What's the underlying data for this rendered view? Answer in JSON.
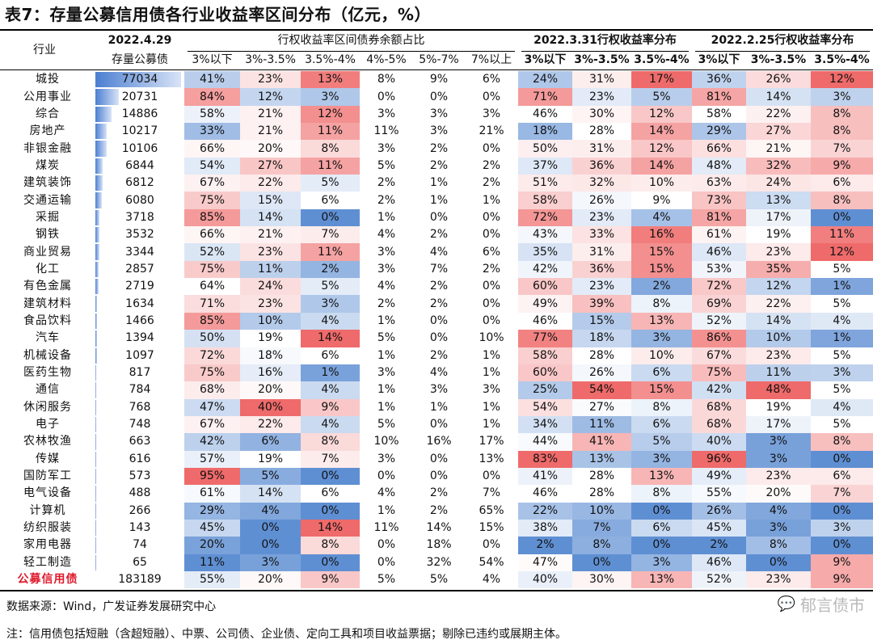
{
  "title": "表7：存量公募信用债各行业收益率区间分布（亿元，%）",
  "headers": {
    "industry": "行业",
    "stock_date": "2022.4.29",
    "stock": "存量公募债",
    "group_share": "行权收益率区间债券余额占比",
    "group_0331": "2022.3.31行权收益率分布",
    "group_0225": "2022.2.25行权收益率分布",
    "share_cols": [
      "3%以下",
      "3%-3.5%",
      "3.5%-4%",
      "4%-5%",
      "5%-7%",
      "7%以上"
    ],
    "dist_0331_cols": [
      "3%以下",
      "3%-3.5%",
      "3.5%-4%"
    ],
    "dist_0225_cols": [
      "3%以下",
      "3%-3.5%",
      "3.5%-4%"
    ]
  },
  "colors": {
    "high": "#ef6a6a",
    "low": "#5f8fd3",
    "mid": "#ffffff",
    "total_label": "#e0192b"
  },
  "rows": [
    {
      "industry": "城投",
      "stock": "77034",
      "share": [
        "41%",
        "23%",
        "13%",
        "8%",
        "9%",
        "6%"
      ],
      "d0331": [
        "24%",
        "31%",
        "17%"
      ],
      "d0225": [
        "36%",
        "26%",
        "12%"
      ]
    },
    {
      "industry": "公用事业",
      "stock": "20731",
      "share": [
        "84%",
        "12%",
        "3%",
        "0%",
        "0%",
        "0%"
      ],
      "d0331": [
        "71%",
        "23%",
        "5%"
      ],
      "d0225": [
        "81%",
        "14%",
        "3%"
      ]
    },
    {
      "industry": "综合",
      "stock": "14886",
      "share": [
        "58%",
        "21%",
        "12%",
        "3%",
        "3%",
        "3%"
      ],
      "d0331": [
        "46%",
        "30%",
        "12%"
      ],
      "d0225": [
        "58%",
        "22%",
        "8%"
      ]
    },
    {
      "industry": "房地产",
      "stock": "10217",
      "share": [
        "33%",
        "21%",
        "11%",
        "11%",
        "3%",
        "21%"
      ],
      "d0331": [
        "18%",
        "28%",
        "14%"
      ],
      "d0225": [
        "29%",
        "27%",
        "8%"
      ]
    },
    {
      "industry": "非银金融",
      "stock": "10106",
      "share": [
        "66%",
        "20%",
        "8%",
        "3%",
        "2%",
        "0%"
      ],
      "d0331": [
        "50%",
        "31%",
        "12%"
      ],
      "d0225": [
        "66%",
        "21%",
        "7%"
      ]
    },
    {
      "industry": "煤炭",
      "stock": "6844",
      "share": [
        "54%",
        "27%",
        "11%",
        "5%",
        "2%",
        "2%"
      ],
      "d0331": [
        "37%",
        "36%",
        "14%"
      ],
      "d0225": [
        "48%",
        "32%",
        "9%"
      ]
    },
    {
      "industry": "建筑装饰",
      "stock": "6812",
      "share": [
        "67%",
        "22%",
        "5%",
        "2%",
        "1%",
        "2%"
      ],
      "d0331": [
        "51%",
        "32%",
        "10%"
      ],
      "d0225": [
        "63%",
        "24%",
        "6%"
      ]
    },
    {
      "industry": "交通运输",
      "stock": "6080",
      "share": [
        "75%",
        "15%",
        "6%",
        "2%",
        "1%",
        "1%"
      ],
      "d0331": [
        "58%",
        "26%",
        "9%"
      ],
      "d0225": [
        "73%",
        "13%",
        "8%"
      ]
    },
    {
      "industry": "采掘",
      "stock": "3718",
      "share": [
        "85%",
        "14%",
        "0%",
        "1%",
        "0%",
        "0%"
      ],
      "d0331": [
        "72%",
        "23%",
        "4%"
      ],
      "d0225": [
        "81%",
        "17%",
        "0%"
      ]
    },
    {
      "industry": "钢铁",
      "stock": "3532",
      "share": [
        "66%",
        "21%",
        "7%",
        "4%",
        "2%",
        "0%"
      ],
      "d0331": [
        "43%",
        "33%",
        "16%"
      ],
      "d0225": [
        "61%",
        "19%",
        "11%"
      ]
    },
    {
      "industry": "商业贸易",
      "stock": "3344",
      "share": [
        "52%",
        "23%",
        "11%",
        "3%",
        "4%",
        "6%"
      ],
      "d0331": [
        "35%",
        "31%",
        "15%"
      ],
      "d0225": [
        "46%",
        "23%",
        "12%"
      ]
    },
    {
      "industry": "化工",
      "stock": "2857",
      "share": [
        "75%",
        "11%",
        "2%",
        "3%",
        "7%",
        "2%"
      ],
      "d0331": [
        "42%",
        "36%",
        "15%"
      ],
      "d0225": [
        "53%",
        "35%",
        "5%"
      ]
    },
    {
      "industry": "有色金属",
      "stock": "2719",
      "share": [
        "64%",
        "24%",
        "5%",
        "4%",
        "2%",
        "0%"
      ],
      "d0331": [
        "60%",
        "23%",
        "2%"
      ],
      "d0225": [
        "72%",
        "12%",
        "1%"
      ]
    },
    {
      "industry": "建筑材料",
      "stock": "1634",
      "share": [
        "71%",
        "23%",
        "3%",
        "2%",
        "2%",
        "0%"
      ],
      "d0331": [
        "49%",
        "39%",
        "8%"
      ],
      "d0225": [
        "69%",
        "22%",
        "5%"
      ]
    },
    {
      "industry": "食品饮料",
      "stock": "1466",
      "share": [
        "85%",
        "10%",
        "4%",
        "1%",
        "0%",
        "0%"
      ],
      "d0331": [
        "46%",
        "15%",
        "13%"
      ],
      "d0225": [
        "52%",
        "14%",
        "4%"
      ]
    },
    {
      "industry": "汽车",
      "stock": "1394",
      "share": [
        "50%",
        "19%",
        "14%",
        "5%",
        "0%",
        "10%"
      ],
      "d0331": [
        "77%",
        "18%",
        "3%"
      ],
      "d0225": [
        "86%",
        "10%",
        "1%"
      ]
    },
    {
      "industry": "机械设备",
      "stock": "1097",
      "share": [
        "72%",
        "18%",
        "6%",
        "1%",
        "2%",
        "1%"
      ],
      "d0331": [
        "58%",
        "28%",
        "10%"
      ],
      "d0225": [
        "67%",
        "23%",
        "5%"
      ]
    },
    {
      "industry": "医药生物",
      "stock": "817",
      "share": [
        "75%",
        "16%",
        "1%",
        "3%",
        "4%",
        "1%"
      ],
      "d0331": [
        "60%",
        "26%",
        "6%"
      ],
      "d0225": [
        "75%",
        "11%",
        "3%"
      ]
    },
    {
      "industry": "通信",
      "stock": "784",
      "share": [
        "68%",
        "20%",
        "4%",
        "1%",
        "3%",
        "3%"
      ],
      "d0331": [
        "25%",
        "54%",
        "15%"
      ],
      "d0225": [
        "42%",
        "48%",
        "5%"
      ]
    },
    {
      "industry": "休闲服务",
      "stock": "768",
      "share": [
        "47%",
        "40%",
        "9%",
        "1%",
        "1%",
        "1%"
      ],
      "d0331": [
        "54%",
        "27%",
        "8%"
      ],
      "d0225": [
        "68%",
        "19%",
        "4%"
      ]
    },
    {
      "industry": "电子",
      "stock": "748",
      "share": [
        "67%",
        "22%",
        "4%",
        "5%",
        "0%",
        "1%"
      ],
      "d0331": [
        "34%",
        "11%",
        "6%"
      ],
      "d0225": [
        "68%",
        "17%",
        "5%"
      ]
    },
    {
      "industry": "农林牧渔",
      "stock": "663",
      "share": [
        "42%",
        "6%",
        "8%",
        "10%",
        "16%",
        "17%"
      ],
      "d0331": [
        "44%",
        "41%",
        "5%"
      ],
      "d0225": [
        "40%",
        "3%",
        "8%"
      ]
    },
    {
      "industry": "传媒",
      "stock": "616",
      "share": [
        "57%",
        "19%",
        "7%",
        "3%",
        "0%",
        "13%"
      ],
      "d0331": [
        "83%",
        "13%",
        "3%"
      ],
      "d0225": [
        "96%",
        "3%",
        "0%"
      ]
    },
    {
      "industry": "国防军工",
      "stock": "573",
      "share": [
        "95%",
        "5%",
        "0%",
        "0%",
        "0%",
        "0%"
      ],
      "d0331": [
        "41%",
        "28%",
        "13%"
      ],
      "d0225": [
        "49%",
        "23%",
        "6%"
      ]
    },
    {
      "industry": "电气设备",
      "stock": "488",
      "share": [
        "61%",
        "14%",
        "6%",
        "4%",
        "2%",
        "7%"
      ],
      "d0331": [
        "46%",
        "28%",
        "8%"
      ],
      "d0225": [
        "55%",
        "20%",
        "7%"
      ]
    },
    {
      "industry": "计算机",
      "stock": "266",
      "share": [
        "29%",
        "4%",
        "0%",
        "1%",
        "2%",
        "65%"
      ],
      "d0331": [
        "22%",
        "10%",
        "0%"
      ],
      "d0225": [
        "26%",
        "4%",
        "0%"
      ]
    },
    {
      "industry": "纺织服装",
      "stock": "143",
      "share": [
        "45%",
        "0%",
        "14%",
        "11%",
        "14%",
        "15%"
      ],
      "d0331": [
        "38%",
        "7%",
        "6%"
      ],
      "d0225": [
        "45%",
        "3%",
        "3%"
      ]
    },
    {
      "industry": "家用电器",
      "stock": "74",
      "share": [
        "20%",
        "0%",
        "8%",
        "0%",
        "18%",
        "0%"
      ],
      "d0331": [
        "2%",
        "8%",
        "0%"
      ],
      "d0225": [
        "2%",
        "8%",
        "0%"
      ]
    },
    {
      "industry": "轻工制造",
      "stock": "65",
      "share": [
        "11%",
        "3%",
        "0%",
        "0%",
        "32%",
        "54%"
      ],
      "d0331": [
        "47%",
        "0%",
        "3%"
      ],
      "d0225": [
        "46%",
        "0%",
        "9%"
      ]
    },
    {
      "industry": "公募信用债",
      "stock": "183189",
      "share": [
        "55%",
        "20%",
        "9%",
        "5%",
        "5%",
        "4%"
      ],
      "d0331": [
        "40%",
        "30%",
        "13%"
      ],
      "d0225": [
        "52%",
        "23%",
        "9%"
      ],
      "is_total": true
    }
  ],
  "footer": {
    "source": "数据来源：Wind，广发证券发展研究中心",
    "note": "注：信用债包括短融（含超短融）、中票、公司债、企业债、定向工具和项目收益票据；剔除已违约或展期主体。"
  },
  "watermark": "郁言债市"
}
